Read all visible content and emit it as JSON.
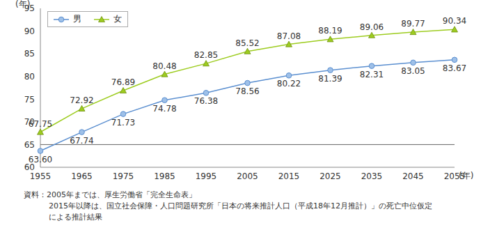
{
  "chart_data": {
    "type": "line",
    "y_label": "(年)",
    "x_label": "(年)",
    "categories": [
      "1955",
      "1965",
      "1975",
      "1985",
      "1995",
      "2005",
      "2015",
      "2025",
      "2035",
      "2045",
      "2055"
    ],
    "series": [
      {
        "name": "男",
        "color": "#5b8fd0",
        "marker": "circle",
        "values": [
          63.6,
          67.74,
          71.73,
          74.78,
          76.38,
          78.56,
          80.22,
          81.39,
          82.31,
          83.05,
          83.67
        ],
        "value_labels": [
          "63.60",
          "67.74",
          "71.73",
          "74.78",
          "76.38",
          "78.56",
          "80.22",
          "81.39",
          "82.31",
          "83.05",
          "83.67"
        ]
      },
      {
        "name": "女",
        "color": "#9dcc1f",
        "marker": "triangle",
        "values": [
          67.75,
          72.92,
          76.89,
          80.48,
          82.85,
          85.52,
          87.08,
          88.19,
          89.06,
          89.77,
          90.34
        ],
        "value_labels": [
          "67.75",
          "72.92",
          "76.89",
          "80.48",
          "82.85",
          "85.52",
          "87.08",
          "88.19",
          "89.06",
          "89.77",
          "90.34"
        ]
      }
    ],
    "ylim": [
      60,
      95
    ],
    "yticks": [
      60,
      65,
      70,
      75,
      80,
      85,
      90,
      95
    ],
    "reference_lines": [
      65
    ],
    "grid": false,
    "legend": "top-left",
    "data_labels": true,
    "notes": [
      "資料：2005年までは、厚生労働省「完全生命表」",
      "2015年以降は、国立社会保障・人口問題研究所「日本の将来推計人口（平成18年12月推計）」の死亡中位仮定",
      "による推計結果"
    ]
  }
}
